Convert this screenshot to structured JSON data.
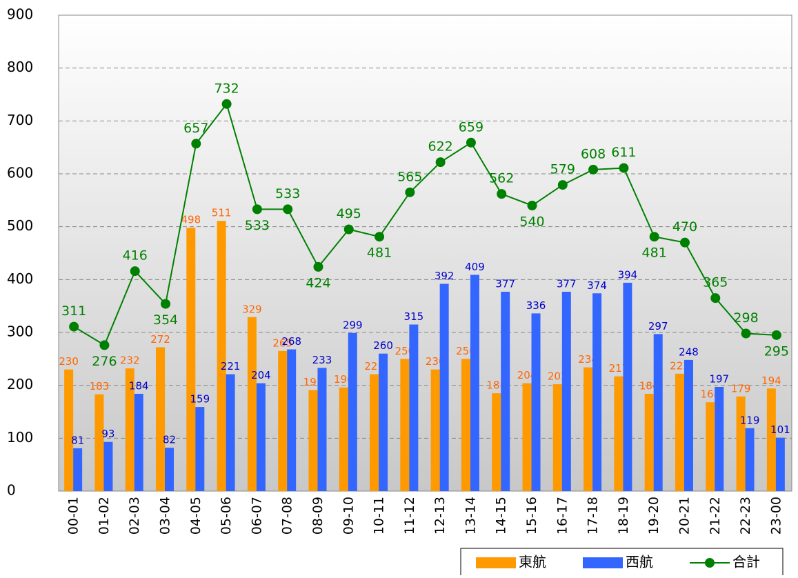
{
  "chart_data": {
    "type": "bar_line",
    "categories": [
      "00-01",
      "01-02",
      "02-03",
      "03-04",
      "04-05",
      "05-06",
      "06-07",
      "07-08",
      "08-09",
      "09-10",
      "10-11",
      "11-12",
      "12-13",
      "13-14",
      "14-15",
      "15-16",
      "16-17",
      "17-18",
      "18-19",
      "19-20",
      "20-21",
      "21-22",
      "22-23",
      "23-00"
    ],
    "series": [
      {
        "name": "東航",
        "type": "bar",
        "color": "#ff9900",
        "label_color": "#ff6600",
        "values": [
          230,
          183,
          232,
          272,
          498,
          511,
          329,
          265,
          191,
          196,
          221,
          250,
          230,
          250,
          185,
          204,
          202,
          234,
          217,
          184,
          222,
          168,
          179,
          194
        ]
      },
      {
        "name": "西航",
        "type": "bar",
        "color": "#3366ff",
        "label_color": "#0000cc",
        "values": [
          81,
          93,
          184,
          82,
          159,
          221,
          204,
          268,
          233,
          299,
          260,
          315,
          392,
          409,
          377,
          336,
          377,
          374,
          394,
          297,
          248,
          197,
          119,
          101
        ]
      },
      {
        "name": "合計",
        "type": "line",
        "color": "#008000",
        "label_color": "#008000",
        "values": [
          311,
          276,
          416,
          354,
          657,
          732,
          533,
          533,
          424,
          495,
          481,
          565,
          622,
          659,
          562,
          540,
          579,
          608,
          611,
          481,
          470,
          365,
          298,
          295
        ]
      }
    ],
    "ylim": [
      0,
      900
    ],
    "yticks": [
      0,
      100,
      200,
      300,
      400,
      500,
      600,
      700,
      800,
      900
    ],
    "grid": true
  }
}
